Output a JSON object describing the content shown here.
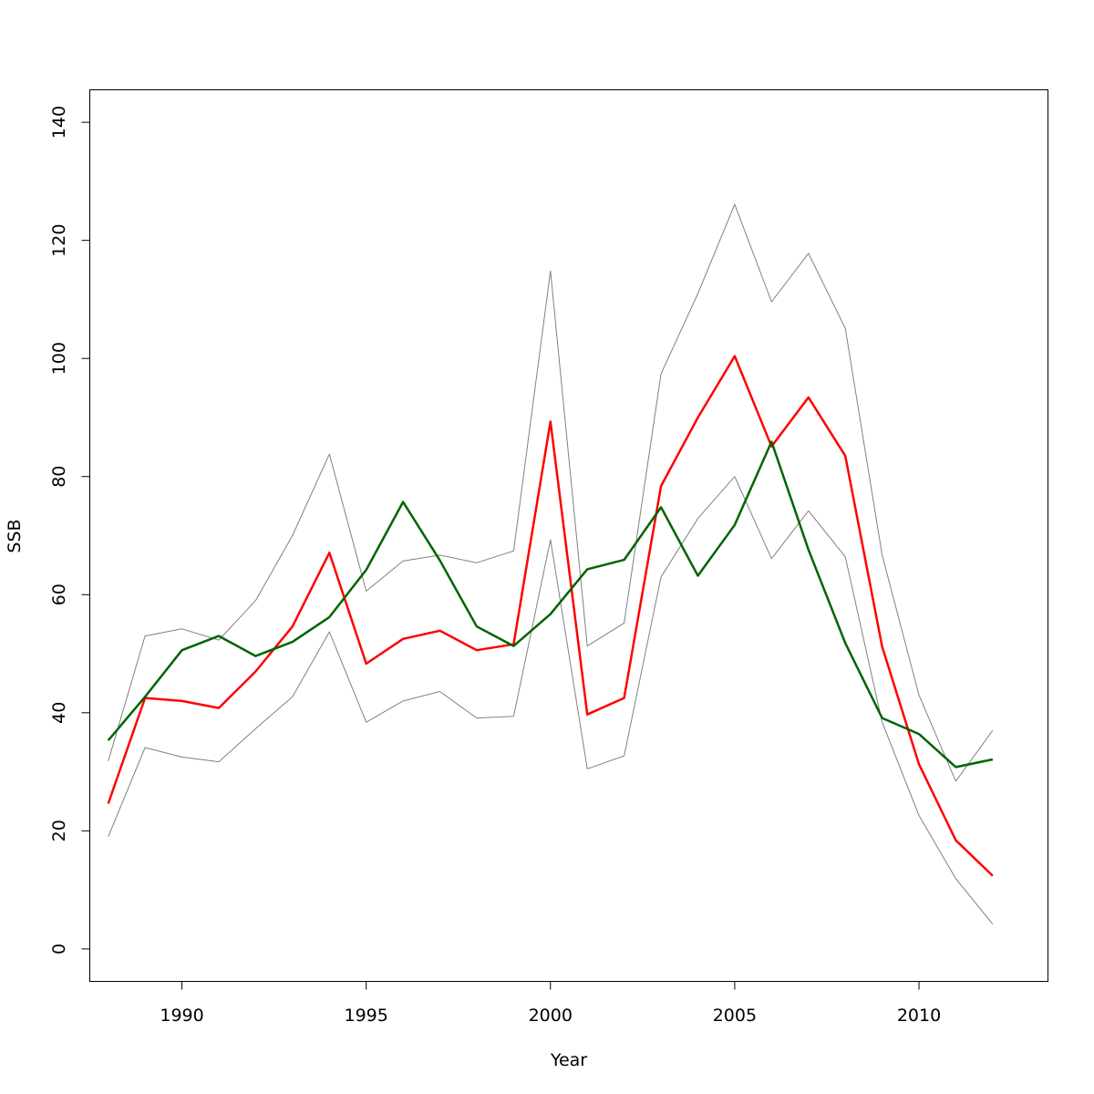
{
  "chart_data": {
    "type": "line",
    "title": "",
    "xlabel": "Year",
    "ylabel": "SSB",
    "xlim": [
      1987.5,
      2013.5
    ],
    "ylim": [
      -5.5,
      145.5
    ],
    "x_ticks": [
      1990,
      1995,
      2000,
      2005,
      2010
    ],
    "y_ticks": [
      0,
      20,
      40,
      60,
      80,
      100,
      120,
      140
    ],
    "x_tick_labels": [
      "1990",
      "1995",
      "2000",
      "2005",
      "2010"
    ],
    "y_tick_labels": [
      "0",
      "20",
      "40",
      "60",
      "80",
      "100",
      "120",
      "140"
    ],
    "grid": false,
    "legend": "none",
    "x": [
      1988,
      1989,
      1990,
      1991,
      1992,
      1993,
      1994,
      1995,
      1996,
      1997,
      1998,
      1999,
      2000,
      2001,
      2002,
      2003,
      2004,
      2005,
      2006,
      2007,
      2008,
      2009,
      2010,
      2011,
      2012
    ],
    "series": [
      {
        "color": "#808080",
        "width": 1,
        "values": [
          31.8,
          53.0,
          54.2,
          52.3,
          59.0,
          70.0,
          83.8,
          60.6,
          65.7,
          66.7,
          65.4,
          67.4,
          114.8,
          51.3,
          55.2,
          97.4,
          111.0,
          126.1,
          109.6,
          117.8,
          105.1,
          66.7,
          43.0,
          28.4,
          37.0
        ]
      },
      {
        "color": "#808080",
        "width": 1,
        "values": [
          19.0,
          34.1,
          32.5,
          31.7,
          37.3,
          42.7,
          53.7,
          38.4,
          42.0,
          43.6,
          39.1,
          39.4,
          69.3,
          30.5,
          32.7,
          63.0,
          72.9,
          80.0,
          66.1,
          74.2,
          66.4,
          38.4,
          22.6,
          11.9,
          4.2
        ]
      },
      {
        "color": "#ff0000",
        "width": 2.5,
        "values": [
          24.6,
          42.5,
          42.0,
          40.8,
          47.0,
          54.6,
          67.1,
          48.3,
          52.5,
          53.9,
          50.6,
          51.6,
          89.3,
          39.7,
          42.5,
          78.4,
          90.0,
          100.4,
          85.1,
          93.4,
          83.5,
          51.2,
          31.3,
          18.4,
          12.4
        ]
      },
      {
        "color": "#006400",
        "width": 2.5,
        "values": [
          35.3,
          42.7,
          50.6,
          53.0,
          49.6,
          52.0,
          56.2,
          64.2,
          75.7,
          65.8,
          54.6,
          51.3,
          56.7,
          64.3,
          65.9,
          74.8,
          63.2,
          71.8,
          85.9,
          67.6,
          51.8,
          39.1,
          36.4,
          30.8,
          32.1
        ]
      }
    ]
  }
}
